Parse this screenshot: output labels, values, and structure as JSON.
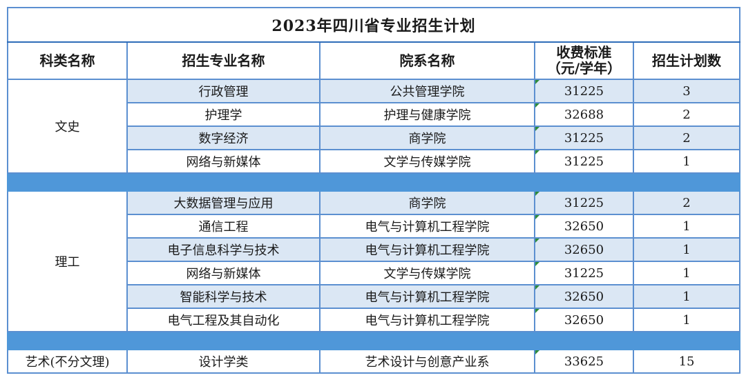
{
  "title": "2023年四川省专业招生计划",
  "headers": {
    "category": "科类名称",
    "major": "招生专业名称",
    "college": "院系名称",
    "fee_line1": "收费标准",
    "fee_line2": "（元/学年）",
    "plan": "招生计划数"
  },
  "groups": [
    {
      "category": "文史",
      "rows": [
        {
          "major": "行政管理",
          "college": "公共管理学院",
          "fee": "31225",
          "plan": "3"
        },
        {
          "major": "护理学",
          "college": "护理与健康学院",
          "fee": "32688",
          "plan": "2"
        },
        {
          "major": "数字经济",
          "college": "商学院",
          "fee": "31225",
          "plan": "2"
        },
        {
          "major": "网络与新媒体",
          "college": "文学与传媒学院",
          "fee": "31225",
          "plan": "1"
        }
      ]
    },
    {
      "category": "理工",
      "rows": [
        {
          "major": "大数据管理与应用",
          "college": "商学院",
          "fee": "31225",
          "plan": "2"
        },
        {
          "major": "通信工程",
          "college": "电气与计算机工程学院",
          "fee": "32650",
          "plan": "1"
        },
        {
          "major": "电子信息科学与技术",
          "college": "电气与计算机工程学院",
          "fee": "32650",
          "plan": "1"
        },
        {
          "major": "网络与新媒体",
          "college": "文学与传媒学院",
          "fee": "31225",
          "plan": "1"
        },
        {
          "major": "智能科学与技术",
          "college": "电气与计算机工程学院",
          "fee": "32650",
          "plan": "1"
        },
        {
          "major": "电气工程及其自动化",
          "college": "电气与计算机工程学院",
          "fee": "32650",
          "plan": "1"
        }
      ]
    },
    {
      "category": "艺术(不分文理)",
      "rows": [
        {
          "major": "设计学类",
          "college": "艺术设计与创意产业系",
          "fee": "33625",
          "plan": "15"
        }
      ]
    }
  ],
  "colors": {
    "border": "#5b8fd0",
    "row_shade": "#dbe7f4",
    "separator": "#4f97d9",
    "cell_marker": "#2e8b3a"
  }
}
